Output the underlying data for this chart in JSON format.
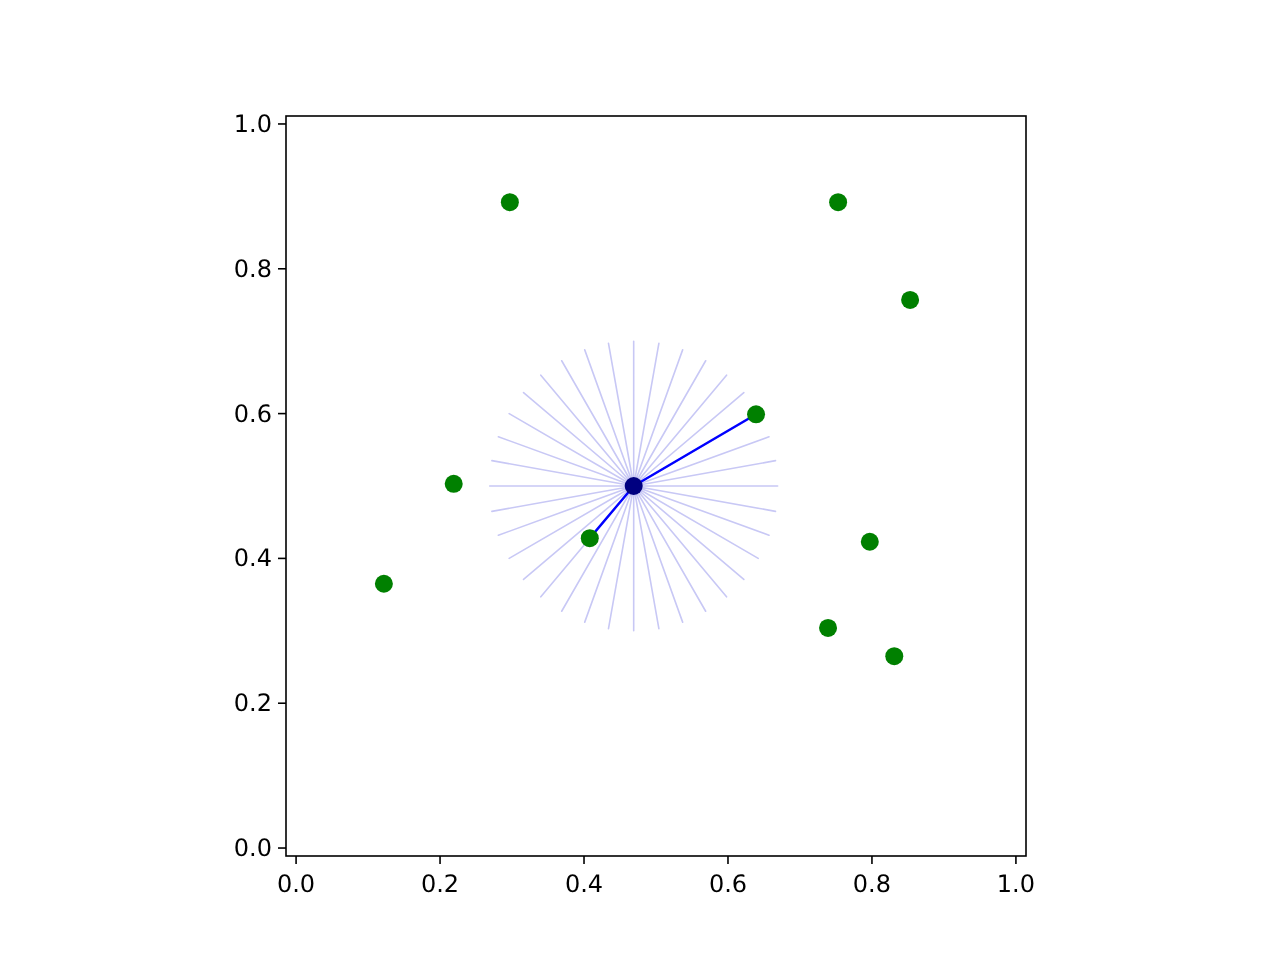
{
  "chart_data": {
    "type": "scatter",
    "xlim": [
      -0.014,
      1.014
    ],
    "ylim": [
      -0.011,
      1.011
    ],
    "xticks": [
      {
        "value": 0,
        "label": "0.0"
      },
      {
        "value": 0.2,
        "label": "0.2"
      },
      {
        "value": 0.4,
        "label": "0.4"
      },
      {
        "value": 0.6,
        "label": "0.6"
      },
      {
        "value": 0.8,
        "label": "0.8"
      },
      {
        "value": 1,
        "label": "1.0"
      }
    ],
    "yticks": [
      {
        "value": 0,
        "label": "0.0"
      },
      {
        "value": 0.2,
        "label": "0.2"
      },
      {
        "value": 0.4,
        "label": "0.4"
      },
      {
        "value": 0.6,
        "label": "0.6"
      },
      {
        "value": 0.8,
        "label": "0.8"
      },
      {
        "value": 1,
        "label": "1.0"
      }
    ],
    "grid": false,
    "series": [
      {
        "type": "line",
        "marker": "none",
        "color": "#c8c8f5",
        "x": [
          0.469,
          0.669,
          0.469,
          0.666,
          0.469,
          0.657,
          0.469,
          0.642,
          0.469,
          0.622,
          0.469,
          0.598,
          0.469,
          0.569,
          0.469,
          0.537,
          0.469,
          0.504,
          0.469,
          0.469,
          0.469,
          0.434,
          0.469,
          0.401,
          0.469,
          0.369,
          0.469,
          0.34,
          0.469,
          0.316,
          0.469,
          0.296,
          0.469,
          0.281,
          0.469,
          0.272,
          0.469,
          0.269,
          0.469,
          0.272,
          0.469,
          0.281,
          0.469,
          0.296,
          0.469,
          0.316,
          0.469,
          0.34,
          0.469,
          0.369,
          0.469,
          0.401,
          0.469,
          0.434,
          0.469,
          0.469,
          0.469,
          0.504,
          0.469,
          0.537,
          0.469,
          0.569,
          0.469,
          0.598,
          0.469,
          0.622,
          0.469,
          0.642,
          0.469,
          0.657,
          0.469,
          0.666
        ],
        "values": [
          0.5,
          0.5,
          0.5,
          0.535,
          0.5,
          0.568,
          0.5,
          0.6,
          0.5,
          0.629,
          0.5,
          0.653,
          0.5,
          0.673,
          0.5,
          0.688,
          0.5,
          0.697,
          0.5,
          0.7,
          0.5,
          0.697,
          0.5,
          0.688,
          0.5,
          0.673,
          0.5,
          0.653,
          0.5,
          0.629,
          0.5,
          0.6,
          0.5,
          0.568,
          0.5,
          0.535,
          0.5,
          0.5,
          0.5,
          0.465,
          0.5,
          0.432,
          0.5,
          0.4,
          0.5,
          0.371,
          0.5,
          0.347,
          0.5,
          0.327,
          0.5,
          0.312,
          0.5,
          0.303,
          0.5,
          0.3,
          0.5,
          0.303,
          0.5,
          0.312,
          0.5,
          0.327,
          0.5,
          0.347,
          0.5,
          0.371,
          0.5,
          0.4,
          0.5,
          0.432,
          0.5,
          0.465
        ]
      },
      {
        "type": "line",
        "marker": "none",
        "color": "#0000ff",
        "x": [
          0.408,
          0.469,
          0.639
        ],
        "values": [
          0.428,
          0.5,
          0.599
        ]
      },
      {
        "marker": "circle",
        "color": "#008000",
        "x": [
          0.297,
          0.753,
          0.853,
          0.639,
          0.219,
          0.408,
          0.122,
          0.797,
          0.739,
          0.831
        ],
        "values": [
          0.892,
          0.892,
          0.757,
          0.599,
          0.503,
          0.428,
          0.365,
          0.423,
          0.304,
          0.265
        ]
      },
      {
        "marker": "circle",
        "color": "#000080",
        "x": [
          0.469
        ],
        "values": [
          0.5
        ]
      }
    ]
  }
}
